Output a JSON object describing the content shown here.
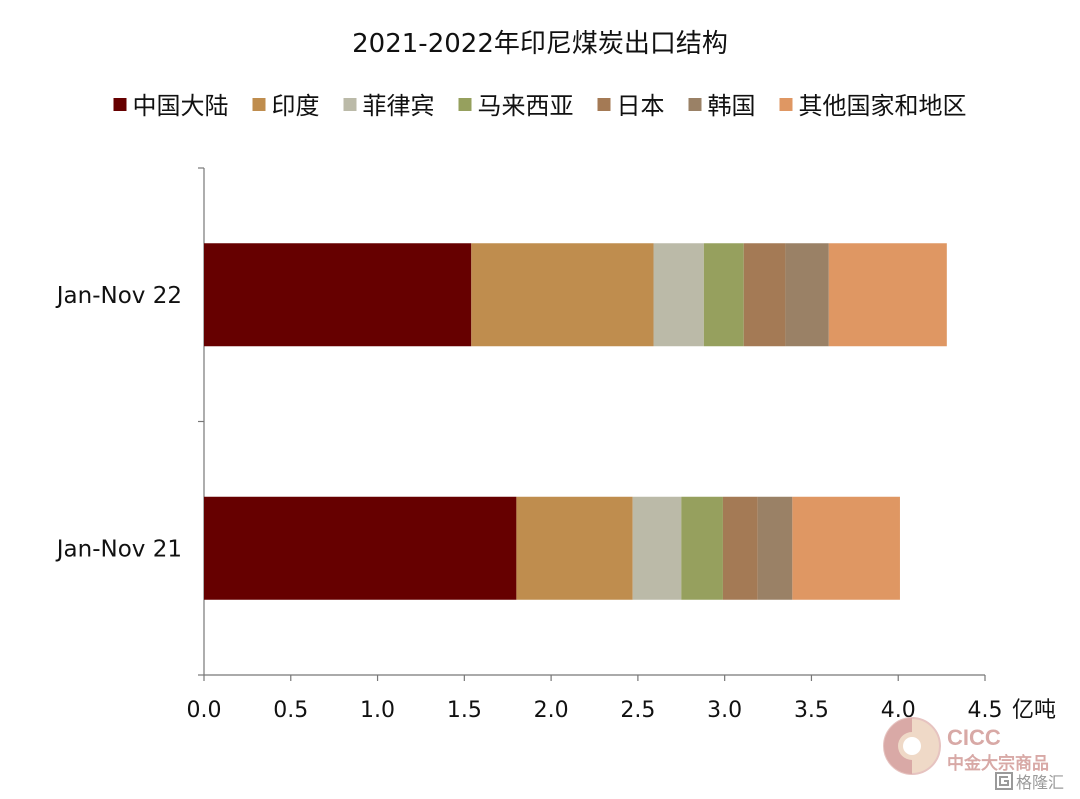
{
  "chart_data": {
    "type": "bar",
    "orientation": "horizontal",
    "stacked": true,
    "title": "2021-2022年印尼煤炭出口结构",
    "unit": "亿吨",
    "categories": [
      "Jan-Nov 22",
      "Jan-Nov 21"
    ],
    "xlim": [
      0,
      4.5
    ],
    "xticks": [
      "0.0",
      "0.5",
      "1.0",
      "1.5",
      "2.0",
      "2.5",
      "3.0",
      "3.5",
      "4.0",
      "4.5"
    ],
    "grid": false,
    "legend_position": "top",
    "series": [
      {
        "name": "中国大陆",
        "color": "#660000",
        "values": [
          1.54,
          1.8
        ]
      },
      {
        "name": "印度",
        "color": "#bf8d4e",
        "values": [
          1.05,
          0.67
        ]
      },
      {
        "name": "菲律宾",
        "color": "#bbbaa8",
        "values": [
          0.29,
          0.28
        ]
      },
      {
        "name": "马来西亚",
        "color": "#96a05e",
        "values": [
          0.23,
          0.24
        ]
      },
      {
        "name": "日本",
        "color": "#a47a55",
        "values": [
          0.24,
          0.2
        ]
      },
      {
        "name": "韩国",
        "color": "#9a8166",
        "values": [
          0.25,
          0.2
        ]
      },
      {
        "name": "其他国家和地区",
        "color": "#df9763",
        "values": [
          0.68,
          0.62
        ]
      }
    ]
  },
  "watermark": {
    "brand": "CICC",
    "sub": "中金大宗商品",
    "platform": "格隆汇"
  }
}
